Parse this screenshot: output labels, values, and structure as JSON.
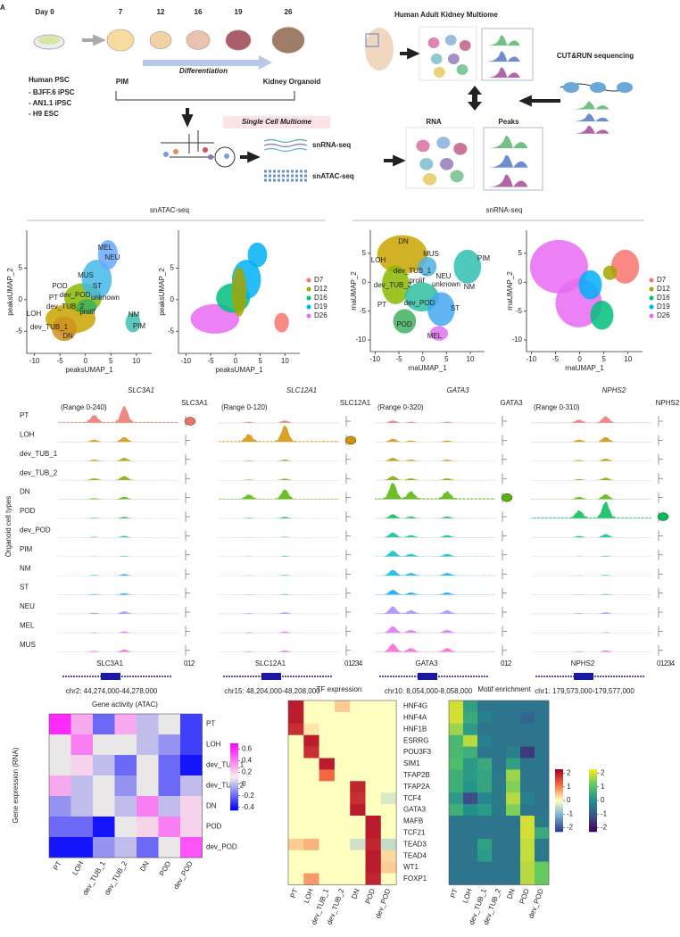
{
  "panel_a": {
    "label": "A",
    "day_label": "Day 0",
    "days": [
      7,
      12,
      16,
      19,
      26
    ],
    "psc_title": "Human PSC",
    "cell_lines": [
      "- BJFF.6 iPSC",
      "- AN1.1 iPSC",
      "- H9 ESC"
    ],
    "pim": "PIM",
    "differentiation": "Differentiation",
    "organoid": "Kidney Organoid",
    "multiome": "Single Cell Multiome",
    "snrna": "snRNA-seq",
    "snatac": "snATAC-seq",
    "adult": "Human Adult Kidney Multiome",
    "cutrun": "CUT&RUN sequencing",
    "rna": "RNA",
    "peaks": "Peaks"
  },
  "panel_b": {
    "atac_header": "snATAC-seq",
    "rna_header": "snRNA-seq",
    "plots": [
      {
        "xlabel": "peaksUMAP_1",
        "ylabel": "peaksUMAP_2",
        "xlim": [
          -11.5,
          13
        ],
        "ylim": [
          -8.5,
          11
        ],
        "xticks": [
          -10,
          -5,
          0,
          5,
          10
        ],
        "yticks": [
          -5,
          0,
          5
        ],
        "labels": [
          "MEL",
          "NEU",
          "MUS",
          "POD",
          "ST",
          "PT",
          "dev_POD",
          "unknown",
          "dev_TUB_2",
          "prolif",
          "LOH",
          "dev_TUB_1",
          "DN",
          "NM",
          "PIM"
        ]
      },
      {
        "xlabel": "peaksUMAP_1",
        "ylabel": "peaksUMAP_2",
        "xlim": [
          -11.5,
          13
        ],
        "ylim": [
          -8.5,
          11
        ],
        "xticks": [
          -10,
          -5,
          0,
          5,
          10
        ],
        "yticks": [
          -5,
          0,
          5
        ]
      },
      {
        "xlabel": "rnaUMAP_1",
        "ylabel": "rnaUMAP_2",
        "xlim": [
          -11,
          13
        ],
        "ylim": [
          -12,
          9
        ],
        "xticks": [
          -10,
          -5,
          0,
          5,
          10
        ],
        "yticks": [
          -10,
          -5,
          0,
          5
        ],
        "labels": [
          "DN",
          "LOH",
          "MUS",
          "PIM",
          "dev_TUB_1",
          "NEU",
          "prolif",
          "dev_TUB_2",
          "unknown",
          "NM",
          "PT",
          "dev_POD",
          "ST",
          "POD",
          "MEL"
        ]
      },
      {
        "xlabel": "rnaUMAP_1",
        "ylabel": "rnaUMAP_2",
        "xlim": [
          -11,
          13
        ],
        "ylim": [
          -12,
          9
        ],
        "xticks": [
          -10,
          -5,
          0,
          5,
          10
        ],
        "yticks": [
          -10,
          -5,
          0,
          5
        ]
      }
    ],
    "legend": {
      "names": [
        "D7",
        "D12",
        "D16",
        "D19",
        "D26"
      ],
      "colors": [
        "#f8766d",
        "#a3a500",
        "#00bf7d",
        "#00b0f6",
        "#e76bf3"
      ]
    }
  },
  "panel_c": {
    "y_label": "Organoid cell types",
    "cell_types": [
      "PT",
      "LOH",
      "dev_TUB_1",
      "dev_TUB_2",
      "DN",
      "POD",
      "dev_POD",
      "PIM",
      "NM",
      "ST",
      "NEU",
      "MEL",
      "MUS"
    ],
    "genes": [
      {
        "name": "SLC3A1",
        "range": "(Range 0-240)",
        "coords": "chr2: 44,274,000-44,278,000",
        "expr_ticks": "012"
      },
      {
        "name": "SLC12A1",
        "range": "(Range 0-120)",
        "coords": "chr15: 48,204,000-48,208,000",
        "expr_ticks": "01234"
      },
      {
        "name": "GATA3",
        "range": "(Range 0-320)",
        "coords": "chr10: 8,054,000-8,058,000",
        "expr_ticks": "012"
      },
      {
        "name": "NPHS2",
        "range": "(Range 0-310)",
        "coords": "chr1: 179,573,000-179,577,000",
        "expr_ticks": "01234"
      }
    ]
  },
  "panel_d": {
    "gene_activity": {
      "title": "Gene activity (ATAC)",
      "ylabel": "Gene expression (RNA)",
      "rows": [
        "PT",
        "LOH",
        "dev_TUB_1",
        "dev_TUB_2",
        "DN",
        "POD",
        "dev_POD"
      ],
      "cols": [
        "PT",
        "LOH",
        "dev_TUB_1",
        "dev_TUB_2",
        "DN",
        "POD",
        "dev_POD"
      ],
      "values": [
        [
          0.6,
          0.3,
          -0.2,
          0.3,
          0,
          0.1,
          -0.3
        ],
        [
          0.1,
          0.4,
          0.1,
          0.1,
          0,
          -0.1,
          -0.3
        ],
        [
          0.1,
          0.2,
          0,
          -0.2,
          0.1,
          -0.2,
          -0.4
        ],
        [
          0.3,
          0,
          0.1,
          -0.1,
          0.1,
          -0.2,
          0
        ],
        [
          -0.1,
          0,
          0.1,
          0,
          0.4,
          0,
          0.2
        ],
        [
          -0.2,
          -0.2,
          -0.4,
          0.1,
          0.2,
          0.4,
          0.2
        ],
        [
          -0.4,
          -0.4,
          -0.1,
          0,
          -0.2,
          0.1,
          0.5
        ]
      ],
      "clim": [
        -0.45,
        0.7
      ],
      "cticks": [
        0.6,
        0.4,
        0.2,
        0,
        -0.2,
        -0.4
      ]
    },
    "tf_rows": [
      "HNF4G",
      "HNF4A",
      "HNF1B",
      "ESRRG",
      "POU3F3",
      "SIM1",
      "TFAP2B",
      "TFAP2A",
      "TCF4",
      "GATA3",
      "MAFB",
      "TCF21",
      "TEAD3",
      "TEAD4",
      "WT1",
      "FOXP1"
    ],
    "tf_cols": [
      "PT",
      "LOH",
      "dev_TUB_1",
      "dev_TUB_2",
      "DN",
      "POD",
      "dev_POD"
    ],
    "tf_expression": {
      "title": "TF expression",
      "values": [
        [
          2,
          0,
          0,
          0.4,
          0,
          0,
          0
        ],
        [
          2,
          0,
          0,
          0,
          0,
          0,
          0
        ],
        [
          1.8,
          0.2,
          0,
          0,
          0,
          0,
          0
        ],
        [
          0,
          2,
          0,
          0,
          0,
          0,
          0
        ],
        [
          0,
          1.8,
          0,
          0,
          0,
          0,
          0
        ],
        [
          0,
          0,
          2,
          0,
          0,
          0,
          0
        ],
        [
          0,
          0,
          1.2,
          0,
          0,
          0,
          0
        ],
        [
          0,
          0,
          0,
          0,
          1.9,
          0,
          0
        ],
        [
          0,
          0,
          0,
          0,
          1.8,
          0,
          -0.3
        ],
        [
          0,
          0,
          0,
          0,
          2,
          0,
          0
        ],
        [
          0,
          0,
          0,
          0,
          0,
          2,
          0
        ],
        [
          0,
          0,
          0,
          0,
          0,
          2,
          0
        ],
        [
          0.4,
          0.6,
          0,
          0,
          -0.4,
          1.9,
          -0.5
        ],
        [
          0,
          0,
          0,
          0,
          0,
          2,
          0.3
        ],
        [
          0,
          0,
          0,
          0,
          0,
          2,
          0.4
        ],
        [
          0,
          0.8,
          0,
          0,
          0,
          1.9,
          0
        ]
      ],
      "clim": [
        -2.3,
        2.3
      ],
      "cticks": [
        2,
        1,
        0,
        -1,
        -2
      ]
    },
    "motif_enrichment": {
      "title": "Motif enrichment",
      "values": [
        [
          2,
          0.3,
          -0.5,
          -0.5,
          -0.5,
          -0.5,
          -0.5
        ],
        [
          2,
          0.5,
          -0.3,
          -0.5,
          -0.5,
          -0.8,
          -0.5
        ],
        [
          1.6,
          0.2,
          -0.5,
          -0.5,
          -0.5,
          -0.5,
          -0.5
        ],
        [
          0.8,
          1.8,
          -0.3,
          -0.5,
          -0.5,
          -0.5,
          -0.5
        ],
        [
          0.8,
          0.6,
          -0.5,
          -0.5,
          -0.3,
          -1.5,
          -0.5
        ],
        [
          0.9,
          0.2,
          0.5,
          -0.5,
          0.3,
          -0.5,
          -0.5
        ],
        [
          0.6,
          0.2,
          0.4,
          -0.4,
          1.6,
          -0.5,
          -0.5
        ],
        [
          0.6,
          0.1,
          0.4,
          -0.4,
          1.4,
          -0.5,
          -0.5
        ],
        [
          0.2,
          -1.2,
          -0.2,
          -0.4,
          1.8,
          -0.3,
          -0.5
        ],
        [
          0.6,
          0,
          0.2,
          -0.4,
          1.4,
          -0.5,
          -0.5
        ],
        [
          -0.5,
          -0.5,
          -0.5,
          -0.5,
          -0.5,
          2,
          -0.4
        ],
        [
          -0.5,
          -0.5,
          -0.5,
          -0.5,
          -0.5,
          2,
          0.5
        ],
        [
          -0.5,
          -0.5,
          0.3,
          -0.5,
          -0.5,
          1.9,
          -0.4
        ],
        [
          -0.5,
          -0.5,
          0.2,
          -0.5,
          -0.5,
          1.9,
          -0.4
        ],
        [
          -0.5,
          -0.5,
          -0.5,
          -0.5,
          -0.5,
          1.8,
          1.2
        ],
        [
          -0.5,
          -0.5,
          -0.5,
          -0.5,
          -0.5,
          1.8,
          1.2
        ]
      ],
      "clim": [
        -2.3,
        2.3
      ],
      "cticks": [
        2,
        1,
        0,
        -1,
        -2
      ]
    }
  }
}
